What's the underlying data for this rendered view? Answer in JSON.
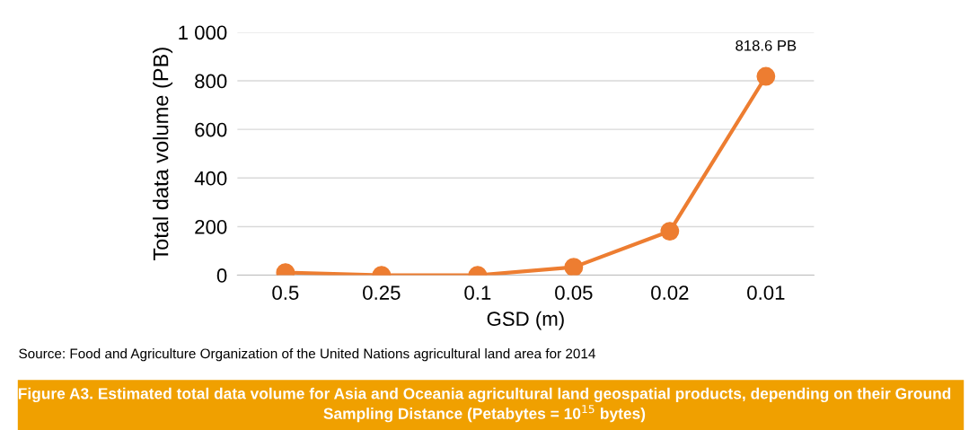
{
  "chart_data": {
    "type": "line",
    "title": "Figure A3. Estimated total data volume for Asia and Oceania agricultural land geospatial products, depending on their Ground Sampling Distance (Petabytes = 10$^{15}$ bytes)",
    "xlabel": "GSD (m)",
    "ylabel": "Total data volume (PB)",
    "categories": [
      "0.5",
      "0.25",
      "0.1",
      "0.05",
      "0.02",
      "0.01"
    ],
    "series": [
      {
        "color": "#ed7d31",
        "values": [
          11,
          0,
          0,
          33,
          181,
          818.6
        ]
      }
    ],
    "ylim": [
      0,
      1000
    ],
    "yticks": [
      0,
      200,
      400,
      600,
      800,
      {
        "value": 1000,
        "label": "1 000"
      }
    ],
    "grid": "y",
    "marker": "circle",
    "line_style": "solid",
    "legend": false,
    "annotations": [
      {
        "text": "818.6 PB",
        "x": "0.01",
        "y": 818.6
      },
      "Source: Food and Agriculture Organization of the United Nations agricultural land area for 2014"
    ]
  }
}
